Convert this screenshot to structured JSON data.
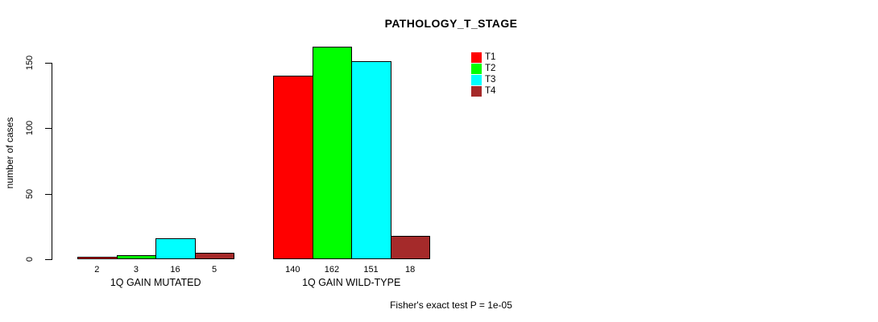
{
  "chart_data": {
    "type": "bar",
    "title": "PATHOLOGY_T_STAGE",
    "ylabel": "number of cases",
    "xlabel": "",
    "categories": [
      "1Q GAIN MUTATED",
      "1Q GAIN WILD-TYPE"
    ],
    "series": [
      {
        "name": "T1",
        "color": "#FF0000",
        "values": [
          2,
          140
        ]
      },
      {
        "name": "T2",
        "color": "#00FF00",
        "values": [
          3,
          162
        ]
      },
      {
        "name": "T3",
        "color": "#00FFFF",
        "values": [
          16,
          151
        ]
      },
      {
        "name": "T4",
        "color": "#A52A2A",
        "values": [
          5,
          18
        ]
      }
    ],
    "yticks": [
      0,
      50,
      100,
      150
    ],
    "ylim": [
      0,
      150
    ],
    "grid": false,
    "bar_borders": true,
    "value_labels_shown": true,
    "legend_position": "top-right",
    "caption": "Fisher's exact test P = 1e-05"
  }
}
